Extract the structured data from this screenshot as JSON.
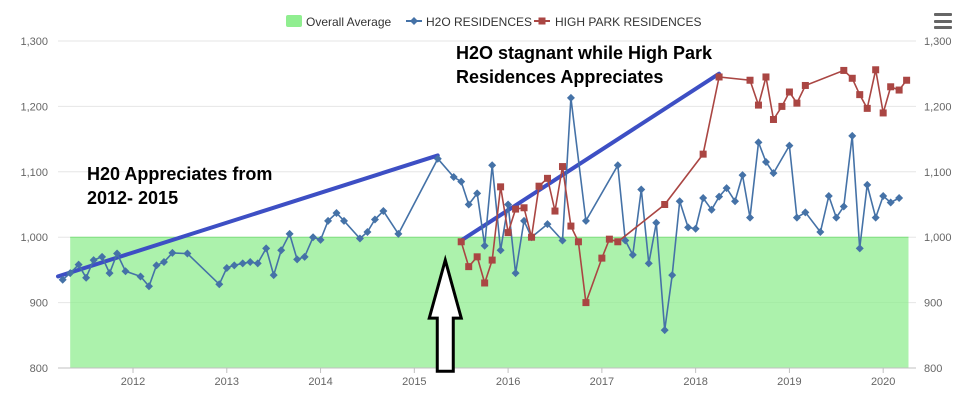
{
  "chart_data": {
    "type": "line",
    "title": "",
    "xlabel": "",
    "ylabel": "",
    "x_ticks": [
      "2012",
      "2013",
      "2014",
      "2015",
      "2016",
      "2017",
      "2018",
      "2019",
      "2020"
    ],
    "y_ticks": [
      "800",
      "900",
      "1,000",
      "1,100",
      "1,200",
      "1,300"
    ],
    "xlim": [
      2011.2,
      2020.35
    ],
    "ylim": [
      800,
      1300
    ],
    "grid": true,
    "legend_position": "top-center",
    "series": [
      {
        "name": "Overall Average",
        "type": "area",
        "color": "#90ee90",
        "value": 1000
      },
      {
        "name": "H2O RESIDENCES",
        "type": "line",
        "marker": "diamond",
        "color": "#4572a7",
        "points": [
          [
            2011.25,
            935
          ],
          [
            2011.33,
            945
          ],
          [
            2011.42,
            958
          ],
          [
            2011.5,
            938
          ],
          [
            2011.58,
            965
          ],
          [
            2011.67,
            970
          ],
          [
            2011.75,
            945
          ],
          [
            2011.83,
            975
          ],
          [
            2011.92,
            948
          ],
          [
            2012.08,
            940
          ],
          [
            2012.17,
            925
          ],
          [
            2012.25,
            957
          ],
          [
            2012.33,
            962
          ],
          [
            2012.42,
            976
          ],
          [
            2012.58,
            975
          ],
          [
            2012.92,
            928
          ],
          [
            2013.0,
            953
          ],
          [
            2013.08,
            957
          ],
          [
            2013.17,
            960
          ],
          [
            2013.25,
            962
          ],
          [
            2013.33,
            960
          ],
          [
            2013.42,
            983
          ],
          [
            2013.5,
            942
          ],
          [
            2013.58,
            980
          ],
          [
            2013.67,
            1005
          ],
          [
            2013.75,
            966
          ],
          [
            2013.83,
            970
          ],
          [
            2013.92,
            1000
          ],
          [
            2014.0,
            996
          ],
          [
            2014.08,
            1025
          ],
          [
            2014.17,
            1037
          ],
          [
            2014.25,
            1025
          ],
          [
            2014.42,
            998
          ],
          [
            2014.5,
            1008
          ],
          [
            2014.58,
            1027
          ],
          [
            2014.67,
            1040
          ],
          [
            2014.83,
            1005
          ],
          [
            2015.25,
            1120
          ],
          [
            2015.42,
            1092
          ],
          [
            2015.5,
            1085
          ],
          [
            2015.58,
            1050
          ],
          [
            2015.67,
            1067
          ],
          [
            2015.75,
            987
          ],
          [
            2015.83,
            1110
          ],
          [
            2015.92,
            980
          ],
          [
            2016.0,
            1050
          ],
          [
            2016.08,
            945
          ],
          [
            2016.17,
            1025
          ],
          [
            2016.25,
            1000
          ],
          [
            2016.42,
            1020
          ],
          [
            2016.58,
            995
          ],
          [
            2016.67,
            1213
          ],
          [
            2016.83,
            1025
          ],
          [
            2017.17,
            1110
          ],
          [
            2017.25,
            995
          ],
          [
            2017.33,
            973
          ],
          [
            2017.42,
            1073
          ],
          [
            2017.5,
            960
          ],
          [
            2017.58,
            1022
          ],
          [
            2017.67,
            858
          ],
          [
            2017.75,
            942
          ],
          [
            2017.83,
            1055
          ],
          [
            2017.92,
            1015
          ],
          [
            2018.0,
            1013
          ],
          [
            2018.08,
            1060
          ],
          [
            2018.17,
            1042
          ],
          [
            2018.25,
            1062
          ],
          [
            2018.33,
            1075
          ],
          [
            2018.42,
            1055
          ],
          [
            2018.5,
            1095
          ],
          [
            2018.58,
            1030
          ],
          [
            2018.67,
            1145
          ],
          [
            2018.75,
            1115
          ],
          [
            2018.83,
            1098
          ],
          [
            2019.0,
            1140
          ],
          [
            2019.08,
            1030
          ],
          [
            2019.17,
            1038
          ],
          [
            2019.33,
            1008
          ],
          [
            2019.42,
            1063
          ],
          [
            2019.5,
            1030
          ],
          [
            2019.58,
            1047
          ],
          [
            2019.67,
            1155
          ],
          [
            2019.75,
            983
          ],
          [
            2019.83,
            1080
          ],
          [
            2019.92,
            1030
          ],
          [
            2020.0,
            1063
          ],
          [
            2020.08,
            1053
          ],
          [
            2020.17,
            1060
          ]
        ]
      },
      {
        "name": "HIGH PARK RESIDENCES",
        "type": "line",
        "marker": "square",
        "color": "#aa4643",
        "points": [
          [
            2015.5,
            993
          ],
          [
            2015.58,
            955
          ],
          [
            2015.67,
            970
          ],
          [
            2015.75,
            930
          ],
          [
            2015.83,
            965
          ],
          [
            2015.92,
            1077
          ],
          [
            2016.0,
            1007
          ],
          [
            2016.08,
            1043
          ],
          [
            2016.17,
            1045
          ],
          [
            2016.25,
            1000
          ],
          [
            2016.33,
            1078
          ],
          [
            2016.42,
            1090
          ],
          [
            2016.5,
            1040
          ],
          [
            2016.58,
            1108
          ],
          [
            2016.67,
            1017
          ],
          [
            2016.75,
            993
          ],
          [
            2016.83,
            900
          ],
          [
            2017.0,
            968
          ],
          [
            2017.08,
            997
          ],
          [
            2017.17,
            993
          ],
          [
            2017.67,
            1050
          ],
          [
            2018.08,
            1127
          ],
          [
            2018.25,
            1245
          ],
          [
            2018.58,
            1240
          ],
          [
            2018.67,
            1202
          ],
          [
            2018.75,
            1245
          ],
          [
            2018.83,
            1180
          ],
          [
            2018.92,
            1200
          ],
          [
            2019.0,
            1222
          ],
          [
            2019.08,
            1205
          ],
          [
            2019.17,
            1232
          ],
          [
            2019.58,
            1255
          ],
          [
            2019.67,
            1243
          ],
          [
            2019.75,
            1218
          ],
          [
            2019.83,
            1197
          ],
          [
            2019.92,
            1256
          ],
          [
            2020.0,
            1190
          ],
          [
            2020.08,
            1230
          ],
          [
            2020.17,
            1225
          ],
          [
            2020.25,
            1240
          ]
        ]
      }
    ],
    "trend_lines": [
      {
        "color": "#3d4fc4",
        "points": [
          [
            2011.2,
            940
          ],
          [
            2015.25,
            1125
          ]
        ]
      },
      {
        "color": "#3d4fc4",
        "points": [
          [
            2015.5,
            995
          ],
          [
            2018.25,
            1250
          ]
        ]
      }
    ],
    "annotations": [
      {
        "lines": [
          "H2O stagnant while High Park",
          "Residences Appreciates"
        ]
      },
      {
        "lines": [
          "H20 Appreciates from",
          "2012- 2015"
        ]
      }
    ],
    "arrow": {
      "x": 2015.33,
      "y_from": 795,
      "y_to": 965
    }
  }
}
